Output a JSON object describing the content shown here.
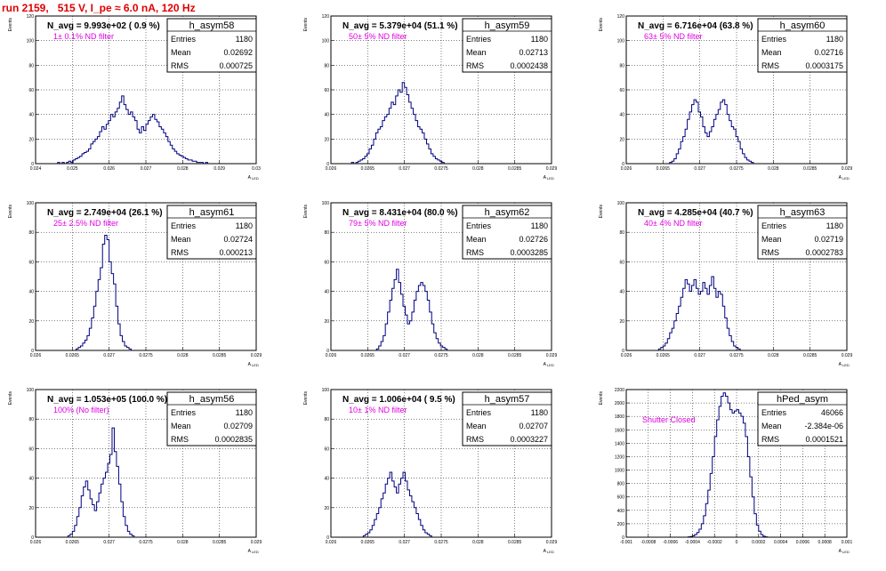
{
  "run_title": "run 2159,   515 V, I_pe ≈ 6.0 nA, 120 Hz",
  "ylabel": "Events",
  "xlabel": "A",
  "xlabel_sub": "LED",
  "stats_labels": {
    "entries": "Entries",
    "mean": "Mean",
    "rms": "RMS"
  },
  "colors": {
    "hist": "#000080",
    "title": "#e00000",
    "filter": "#e000e0",
    "grid": "#000000"
  },
  "chart_data": [
    {
      "type": "histogram",
      "name": "h_asym58",
      "n_avg": "N_avg = 9.993e+02 ( 0.9 %)",
      "filter": "1± 0.1% ND filter",
      "entries": "1180",
      "mean": "0.02692",
      "rms": "0.000725",
      "xlim": [
        0.024,
        0.03
      ],
      "xticks": [
        "0.024",
        "0.025",
        "0.026",
        "0.027",
        "0.028",
        "0.029",
        "0.03"
      ],
      "xtick_values": [
        0.024,
        0.025,
        0.026,
        0.027,
        0.028,
        0.029,
        0.03
      ],
      "ylim": [
        0,
        120
      ],
      "yticks": [
        "0",
        "20",
        "40",
        "60",
        "80",
        "100",
        "120"
      ],
      "ytick_values": [
        0,
        20,
        40,
        60,
        80,
        100,
        120
      ],
      "bins": {
        "start": 0.0246,
        "width": 6e-05,
        "counts": [
          1,
          0,
          1,
          0,
          1,
          2,
          1,
          3,
          4,
          5,
          6,
          8,
          9,
          10,
          12,
          16,
          18,
          20,
          22,
          26,
          30,
          28,
          32,
          35,
          40,
          38,
          42,
          45,
          50,
          55,
          48,
          44,
          40,
          42,
          38,
          35,
          28,
          25,
          30,
          27,
          32,
          35,
          38,
          40,
          36,
          34,
          30,
          28,
          25,
          22,
          18,
          15,
          12,
          10,
          8,
          7,
          6,
          5,
          4,
          3,
          3,
          2,
          2,
          1,
          1,
          1,
          0,
          1
        ]
      }
    },
    {
      "type": "histogram",
      "name": "h_asym59",
      "n_avg": "N_avg = 5.379e+04 (51.1 %)",
      "filter": "50± 5% ND filter",
      "entries": "1180",
      "mean": "0.02713",
      "rms": "0.0002438",
      "xlim": [
        0.026,
        0.029
      ],
      "xticks": [
        "0.026",
        "0.0265",
        "0.027",
        "0.0275",
        "0.028",
        "0.0285",
        "0.029"
      ],
      "xtick_values": [
        0.026,
        0.0265,
        0.027,
        0.0275,
        0.028,
        0.0285,
        0.029
      ],
      "ylim": [
        0,
        120
      ],
      "yticks": [
        "0",
        "20",
        "40",
        "60",
        "80",
        "100",
        "120"
      ],
      "ytick_values": [
        0,
        20,
        40,
        60,
        80,
        100,
        120
      ],
      "bins": {
        "start": 0.02628,
        "width": 3e-05,
        "counts": [
          1,
          0,
          1,
          2,
          3,
          4,
          6,
          8,
          12,
          15,
          20,
          25,
          28,
          30,
          35,
          38,
          40,
          45,
          50,
          48,
          55,
          60,
          58,
          66,
          62,
          56,
          50,
          45,
          40,
          35,
          30,
          28,
          25,
          20,
          16,
          12,
          8,
          6,
          4,
          3,
          2,
          1
        ]
      }
    },
    {
      "type": "histogram",
      "name": "h_asym60",
      "n_avg": "N_avg = 6.716e+04 (63.8 %)",
      "filter": "63± 5% ND filter",
      "entries": "1180",
      "mean": "0.02716",
      "rms": "0.0003175",
      "xlim": [
        0.026,
        0.029
      ],
      "xticks": [
        "0.026",
        "0.0265",
        "0.027",
        "0.0275",
        "0.028",
        "0.0285",
        "0.029"
      ],
      "xtick_values": [
        0.026,
        0.0265,
        0.027,
        0.0275,
        0.028,
        0.0285,
        0.029
      ],
      "ylim": [
        0,
        120
      ],
      "yticks": [
        "0",
        "20",
        "40",
        "60",
        "80",
        "100",
        "120"
      ],
      "ytick_values": [
        0,
        20,
        40,
        60,
        80,
        100,
        120
      ],
      "bins": {
        "start": 0.02659,
        "width": 3e-05,
        "counts": [
          1,
          2,
          4,
          8,
          12,
          18,
          22,
          28,
          36,
          42,
          48,
          52,
          50,
          42,
          38,
          30,
          25,
          22,
          26,
          30,
          36,
          40,
          44,
          50,
          52,
          48,
          40,
          35,
          30,
          28,
          22,
          18,
          12,
          8,
          5,
          3,
          2,
          1
        ]
      }
    },
    {
      "type": "histogram",
      "name": "h_asym61",
      "n_avg": "N_avg = 2.749e+04 (26.1 %)",
      "filter": "25± 2.5% ND filter",
      "entries": "1180",
      "mean": "0.02724",
      "rms": "0.000213",
      "xlim": [
        0.026,
        0.029
      ],
      "xticks": [
        "0.026",
        "0.0265",
        "0.027",
        "0.0275",
        "0.028",
        "0.0285",
        "0.029"
      ],
      "xtick_values": [
        0.026,
        0.0265,
        0.027,
        0.0275,
        0.028,
        0.0285,
        0.029
      ],
      "ylim": [
        0,
        100
      ],
      "yticks": [
        "0",
        "20",
        "40",
        "60",
        "80",
        "100"
      ],
      "ytick_values": [
        0,
        20,
        40,
        60,
        80,
        100
      ],
      "bins": {
        "start": 0.02655,
        "width": 3e-05,
        "counts": [
          1,
          2,
          3,
          5,
          7,
          10,
          15,
          22,
          30,
          40,
          48,
          56,
          72,
          78,
          75,
          60,
          52,
          45,
          30,
          18,
          10,
          6,
          3,
          2,
          1
        ]
      }
    },
    {
      "type": "histogram",
      "name": "h_asym62",
      "n_avg": "N_avg = 8.431e+04 (80.0 %)",
      "filter": "79± 5% ND filter",
      "entries": "1180",
      "mean": "0.02726",
      "rms": "0.0003285",
      "xlim": [
        0.026,
        0.029
      ],
      "xticks": [
        "0.026",
        "0.0265",
        "0.027",
        "0.0275",
        "0.028",
        "0.0285",
        "0.029"
      ],
      "xtick_values": [
        0.026,
        0.0265,
        0.027,
        0.0275,
        0.028,
        0.0285,
        0.029
      ],
      "ylim": [
        0,
        100
      ],
      "yticks": [
        "0",
        "20",
        "40",
        "60",
        "80",
        "100"
      ],
      "ytick_values": [
        0,
        20,
        40,
        60,
        80,
        100
      ],
      "bins": {
        "start": 0.02662,
        "width": 3e-05,
        "counts": [
          1,
          3,
          6,
          10,
          18,
          26,
          34,
          42,
          48,
          55,
          46,
          38,
          30,
          24,
          18,
          20,
          26,
          34,
          40,
          44,
          46,
          44,
          40,
          34,
          26,
          18,
          12,
          8,
          5,
          3,
          2,
          1
        ]
      }
    },
    {
      "type": "histogram",
      "name": "h_asym63",
      "n_avg": "N_avg = 4.285e+04 (40.7 %)",
      "filter": "40± 4% ND filter",
      "entries": "1180",
      "mean": "0.02719",
      "rms": "0.0002783",
      "xlim": [
        0.026,
        0.029
      ],
      "xticks": [
        "0.026",
        "0.0265",
        "0.027",
        "0.0275",
        "0.028",
        "0.0285",
        "0.029"
      ],
      "xtick_values": [
        0.026,
        0.0265,
        0.027,
        0.0275,
        0.028,
        0.0285,
        0.029
      ],
      "ylim": [
        0,
        100
      ],
      "yticks": [
        "0",
        "20",
        "40",
        "60",
        "80",
        "100"
      ],
      "ytick_values": [
        0,
        20,
        40,
        60,
        80,
        100
      ],
      "bins": {
        "start": 0.02644,
        "width": 3e-05,
        "counts": [
          1,
          2,
          3,
          5,
          8,
          12,
          15,
          20,
          25,
          30,
          36,
          42,
          48,
          45,
          40,
          44,
          48,
          42,
          38,
          40,
          46,
          42,
          38,
          44,
          50,
          42,
          36,
          40,
          38,
          30,
          22,
          15,
          10,
          6,
          3,
          2,
          1
        ]
      }
    },
    {
      "type": "histogram",
      "name": "h_asym56",
      "n_avg": "N_avg = 1.053e+05 (100.0 %)",
      "filter": "100% (No filter)",
      "entries": "1180",
      "mean": "0.02709",
      "rms": "0.0002835",
      "xlim": [
        0.026,
        0.029
      ],
      "xticks": [
        "0.026",
        "0.0265",
        "0.027",
        "0.0275",
        "0.028",
        "0.0285",
        "0.029"
      ],
      "xtick_values": [
        0.026,
        0.0265,
        0.027,
        0.0275,
        0.028,
        0.0285,
        0.029
      ],
      "ylim": [
        0,
        100
      ],
      "yticks": [
        "0",
        "20",
        "40",
        "60",
        "80",
        "100"
      ],
      "ytick_values": [
        0,
        20,
        40,
        60,
        80,
        100
      ],
      "bins": {
        "start": 0.02644,
        "width": 3e-05,
        "counts": [
          1,
          2,
          4,
          8,
          14,
          20,
          28,
          34,
          38,
          32,
          26,
          22,
          18,
          24,
          30,
          36,
          40,
          44,
          50,
          56,
          74,
          58,
          48,
          36,
          24,
          14,
          8,
          4,
          2,
          1
        ]
      }
    },
    {
      "type": "histogram",
      "name": "h_asym57",
      "n_avg": "N_avg = 1.006e+04 ( 9.5 %)",
      "filter": "10± 1% ND filter",
      "entries": "1180",
      "mean": "0.02707",
      "rms": "0.0003227",
      "xlim": [
        0.026,
        0.029
      ],
      "xticks": [
        "0.026",
        "0.0265",
        "0.027",
        "0.0275",
        "0.028",
        "0.0285",
        "0.029"
      ],
      "xtick_values": [
        0.026,
        0.0265,
        0.027,
        0.0275,
        0.028,
        0.0285,
        0.029
      ],
      "ylim": [
        0,
        100
      ],
      "yticks": [
        "0",
        "20",
        "40",
        "60",
        "80",
        "100"
      ],
      "ytick_values": [
        0,
        20,
        40,
        60,
        80,
        100
      ],
      "bins": {
        "start": 0.02644,
        "width": 3e-05,
        "counts": [
          1,
          2,
          3,
          5,
          8,
          12,
          16,
          20,
          26,
          30,
          36,
          40,
          44,
          38,
          34,
          30,
          36,
          40,
          44,
          38,
          32,
          28,
          24,
          20,
          16,
          12,
          8,
          5,
          3,
          2,
          1
        ]
      }
    },
    {
      "type": "histogram",
      "name": "hPed_asym",
      "n_avg": "",
      "filter": "Shutter Closed",
      "entries": "46066",
      "mean": "-2.384e-06",
      "rms": "0.0001521",
      "xlim": [
        -0.001,
        0.001
      ],
      "xticks": [
        "-0.001",
        "-0.0008",
        "-0.0006",
        "-0.0004",
        "-0.0002",
        "0",
        "0.0002",
        "0.0004",
        "0.0006",
        "0.0008",
        "0.001"
      ],
      "xtick_values": [
        -0.001,
        -0.0008,
        -0.0006,
        -0.0004,
        -0.0002,
        0,
        0.0002,
        0.0004,
        0.0006,
        0.0008,
        0.001
      ],
      "ylim": [
        0,
        2200
      ],
      "yticks": [
        "0",
        "200",
        "400",
        "600",
        "800",
        "1000",
        "1200",
        "1400",
        "1600",
        "1800",
        "2000",
        "2200"
      ],
      "ytick_values": [
        0,
        200,
        400,
        600,
        800,
        1000,
        1200,
        1400,
        1600,
        1800,
        2000,
        2200
      ],
      "bins": {
        "start": -0.00044,
        "width": 2e-05,
        "counts": [
          5,
          10,
          20,
          40,
          70,
          120,
          200,
          320,
          500,
          700,
          950,
          1200,
          1500,
          1750,
          1950,
          2100,
          2150,
          2100,
          2000,
          1900,
          1850,
          1880,
          1900,
          1850,
          1800,
          1700,
          1500,
          1200,
          900,
          600,
          350,
          180,
          90,
          40,
          15,
          5
        ]
      }
    }
  ]
}
